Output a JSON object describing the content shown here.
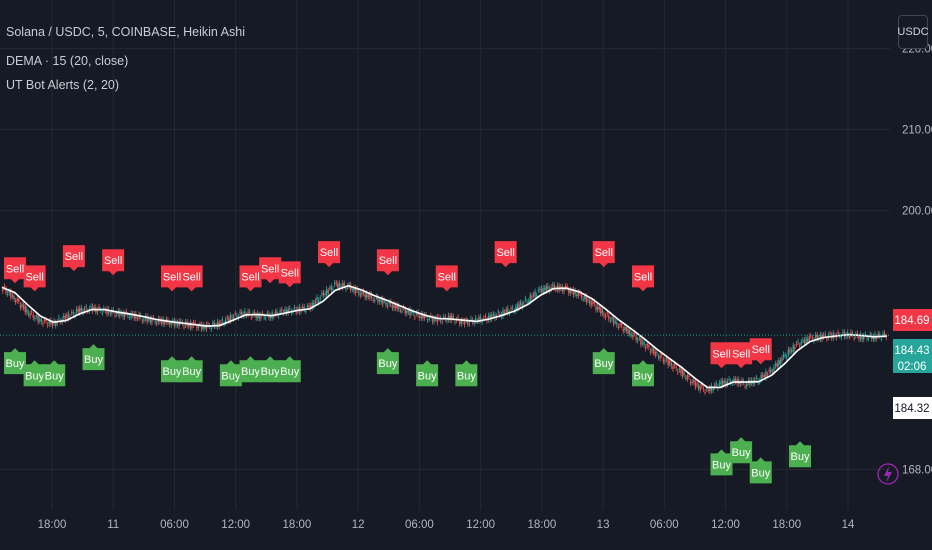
{
  "legend": {
    "symbol": "Solana / USDC, 5, COINBASE, Heikin Ashi",
    "dema": "DEMA · 15 (20, close)",
    "ut": "UT Bot Alerts (2, 20)"
  },
  "currency_button": "USDC",
  "colors": {
    "background": "#161a25",
    "grid": "#242832",
    "up": "#26a69a",
    "down": "#ef5350",
    "dema_line": "#ffffff",
    "sell_label": "#f23645",
    "buy_label": "#4caf50",
    "last_price_line": "#26a69a"
  },
  "chart_data": {
    "type": "line",
    "style": "heikin-ashi",
    "ylim": [
      163,
      226
    ],
    "y_ticks": [
      220,
      210,
      200,
      168
    ],
    "x_tick_labels": [
      "18:00",
      "11",
      "06:00",
      "12:00",
      "18:00",
      "12",
      "06:00",
      "12:00",
      "18:00",
      "13",
      "06:00",
      "12:00",
      "18:00",
      "14"
    ],
    "grid": true,
    "series": [
      {
        "values": [
          190.5,
          189.2,
          187.5,
          186.4,
          186.0,
          186.8,
          187.6,
          187.9,
          187.6,
          187.3,
          187.1,
          186.7,
          186.4,
          186.2,
          186.0,
          185.8,
          185.6,
          186.0,
          186.9,
          187.3,
          187.0,
          187.0,
          187.6,
          187.7,
          188.0,
          189.5,
          190.8,
          190.6,
          189.8,
          189.2,
          188.6,
          187.9,
          187.3,
          186.8,
          186.5,
          186.7,
          186.2,
          186.4,
          186.8,
          187.3,
          187.9,
          188.9,
          190.2,
          190.5,
          190.3,
          189.6,
          188.6,
          187.2,
          186.0,
          184.9,
          183.6,
          182.3,
          181.2,
          180.0,
          178.6,
          177.7,
          178.6,
          179.0,
          178.6,
          179.1,
          180.2,
          181.9,
          183.4,
          184.2,
          184.4,
          184.6,
          184.7,
          184.4,
          184.4,
          184.6
        ]
      }
    ],
    "price_labels": [
      "184.69",
      "184.43",
      "02:06",
      "184.32"
    ],
    "signals": {
      "sell": [
        {
          "x": 0,
          "y": 191.5
        },
        {
          "x": 1,
          "y": 190.5
        },
        {
          "x": 3,
          "y": 193.0
        },
        {
          "x": 5,
          "y": 192.5
        },
        {
          "x": 8,
          "y": 190.5
        },
        {
          "x": 9,
          "y": 190.5
        },
        {
          "x": 12,
          "y": 190.5
        },
        {
          "x": 13,
          "y": 191.5
        },
        {
          "x": 14,
          "y": 191.0
        },
        {
          "x": 16,
          "y": 193.5
        },
        {
          "x": 19,
          "y": 192.5
        },
        {
          "x": 22,
          "y": 190.5
        },
        {
          "x": 25,
          "y": 193.5
        },
        {
          "x": 30,
          "y": 193.5
        },
        {
          "x": 32,
          "y": 190.5
        },
        {
          "x": 36,
          "y": 181.0
        },
        {
          "x": 37,
          "y": 181.0
        },
        {
          "x": 38,
          "y": 181.5
        }
      ],
      "buy": [
        {
          "x": 0,
          "y": 182.5
        },
        {
          "x": 1,
          "y": 181.0
        },
        {
          "x": 2,
          "y": 181.0
        },
        {
          "x": 4,
          "y": 183.0
        },
        {
          "x": 8,
          "y": 181.5
        },
        {
          "x": 9,
          "y": 181.5
        },
        {
          "x": 11,
          "y": 181.0
        },
        {
          "x": 12,
          "y": 181.5
        },
        {
          "x": 13,
          "y": 181.5
        },
        {
          "x": 14,
          "y": 181.5
        },
        {
          "x": 19,
          "y": 182.5
        },
        {
          "x": 21,
          "y": 181.0
        },
        {
          "x": 23,
          "y": 181.0
        },
        {
          "x": 30,
          "y": 182.5
        },
        {
          "x": 32,
          "y": 181.0
        },
        {
          "x": 36,
          "y": 170.0
        },
        {
          "x": 37,
          "y": 171.5
        },
        {
          "x": 38,
          "y": 169.0
        },
        {
          "x": 40,
          "y": 171.0
        }
      ],
      "sell_label": "Sell",
      "buy_label": "Buy"
    }
  }
}
